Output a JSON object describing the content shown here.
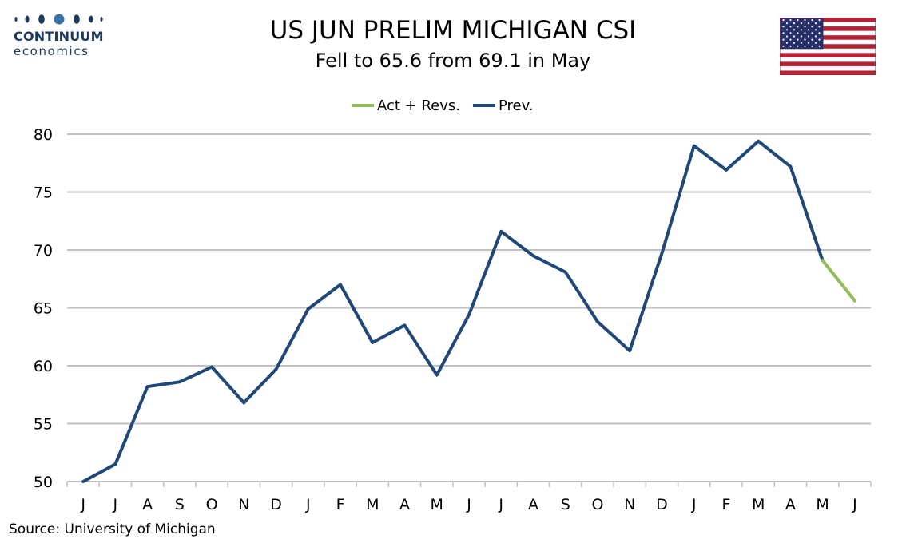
{
  "header": {
    "logo_word": "CONTINUUM",
    "logo_sub": "economics",
    "title": "US JUN PRELIM MICHIGAN CSI",
    "subtitle": "Fell to 65.6 from 69.1 in May"
  },
  "colors": {
    "prev": "#1f4878",
    "act": "#92bb5a",
    "grid": "#c0c0c0",
    "logo": "#1c3a5e"
  },
  "icons": {
    "flag": "us-flag-icon"
  },
  "legend": {
    "act_label": "Act + Revs.",
    "prev_label": "Prev."
  },
  "source": "Source: University of Michigan",
  "chart_data": {
    "type": "line",
    "categories": [
      "J",
      "J",
      "A",
      "S",
      "O",
      "N",
      "D",
      "J",
      "F",
      "M",
      "A",
      "M",
      "J",
      "J",
      "A",
      "S",
      "O",
      "N",
      "D",
      "J",
      "F",
      "M",
      "A",
      "M",
      "J"
    ],
    "series": [
      {
        "name": "Prev.",
        "values": [
          50.0,
          51.5,
          58.2,
          58.6,
          59.9,
          56.8,
          59.7,
          64.9,
          67.0,
          62.0,
          63.5,
          59.2,
          64.4,
          71.6,
          69.5,
          68.1,
          63.8,
          61.3,
          69.7,
          79.0,
          76.9,
          79.4,
          77.2,
          69.1,
          null
        ]
      },
      {
        "name": "Act + Revs.",
        "values": [
          null,
          null,
          null,
          null,
          null,
          null,
          null,
          null,
          null,
          null,
          null,
          null,
          null,
          null,
          null,
          null,
          null,
          null,
          null,
          null,
          null,
          null,
          null,
          69.1,
          65.6
        ]
      }
    ],
    "ylim": [
      50,
      80
    ],
    "yticks": [
      50,
      55,
      60,
      65,
      70,
      75,
      80
    ],
    "grid": true,
    "legend_position": "top-center"
  }
}
